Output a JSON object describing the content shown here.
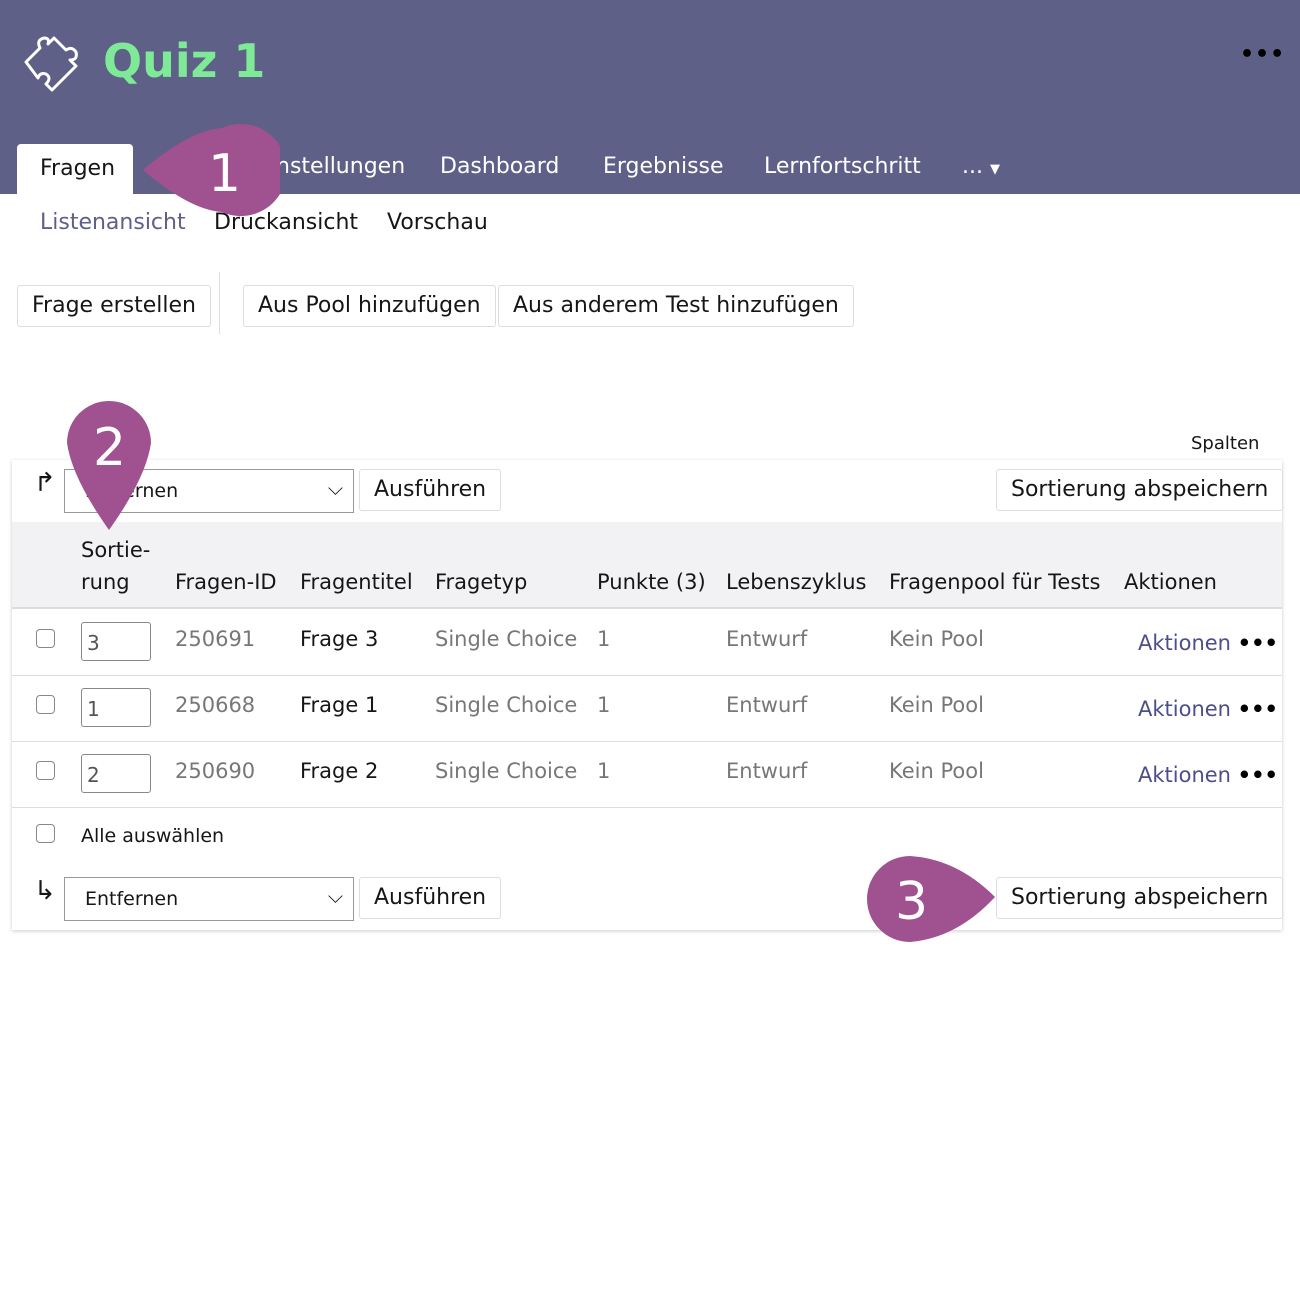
{
  "header": {
    "title": "Quiz 1",
    "icon": "puzzle-icon",
    "menu_icon": "more-dots-icon",
    "background": "#5f6087",
    "title_color": "#7eea97"
  },
  "tabs": [
    {
      "label": "Fragen",
      "active": true
    },
    {
      "label": "Einstellungen"
    },
    {
      "label": "Dashboard"
    },
    {
      "label": "Ergebnisse"
    },
    {
      "label": "Lernfortschritt"
    },
    {
      "label": "..."
    }
  ],
  "subtabs": [
    {
      "label": "Listenansicht",
      "active": true
    },
    {
      "label": "Druckansicht"
    },
    {
      "label": "Vorschau"
    }
  ],
  "toolbar": {
    "create": "Frage erstellen",
    "from_pool": "Aus Pool hinzufügen",
    "from_test": "Aus anderem Test hinzufügen"
  },
  "table": {
    "columns_label": "Spalten",
    "action_select": "Entfernen",
    "execute": "Ausführen",
    "save_sort": "Sortierung abspeichern",
    "headers": {
      "sort_1": "Sortie-",
      "sort_2": "rung",
      "id": "Fragen-ID",
      "title": "Fragentitel",
      "type": "Fragetyp",
      "points": "Punkte (3)",
      "lifecycle": "Lebenszyklus",
      "pool": "Fragenpool für Tests",
      "actions": "Aktionen"
    },
    "rows": [
      {
        "sort": "3",
        "id": "250691",
        "title": "Frage 3",
        "type": "Single Choice",
        "points": "1",
        "lifecycle": "Entwurf",
        "pool": "Kein Pool",
        "actions": "Aktionen"
      },
      {
        "sort": "1",
        "id": "250668",
        "title": "Frage 1",
        "type": "Single Choice",
        "points": "1",
        "lifecycle": "Entwurf",
        "pool": "Kein Pool",
        "actions": "Aktionen"
      },
      {
        "sort": "2",
        "id": "250690",
        "title": "Frage 2",
        "type": "Single Choice",
        "points": "1",
        "lifecycle": "Entwurf",
        "pool": "Kein Pool",
        "actions": "Aktionen"
      }
    ],
    "select_all": "Alle auswählen"
  },
  "markers": {
    "m1": "1",
    "m2": "2",
    "m3": "3",
    "color": "#a0518f"
  }
}
